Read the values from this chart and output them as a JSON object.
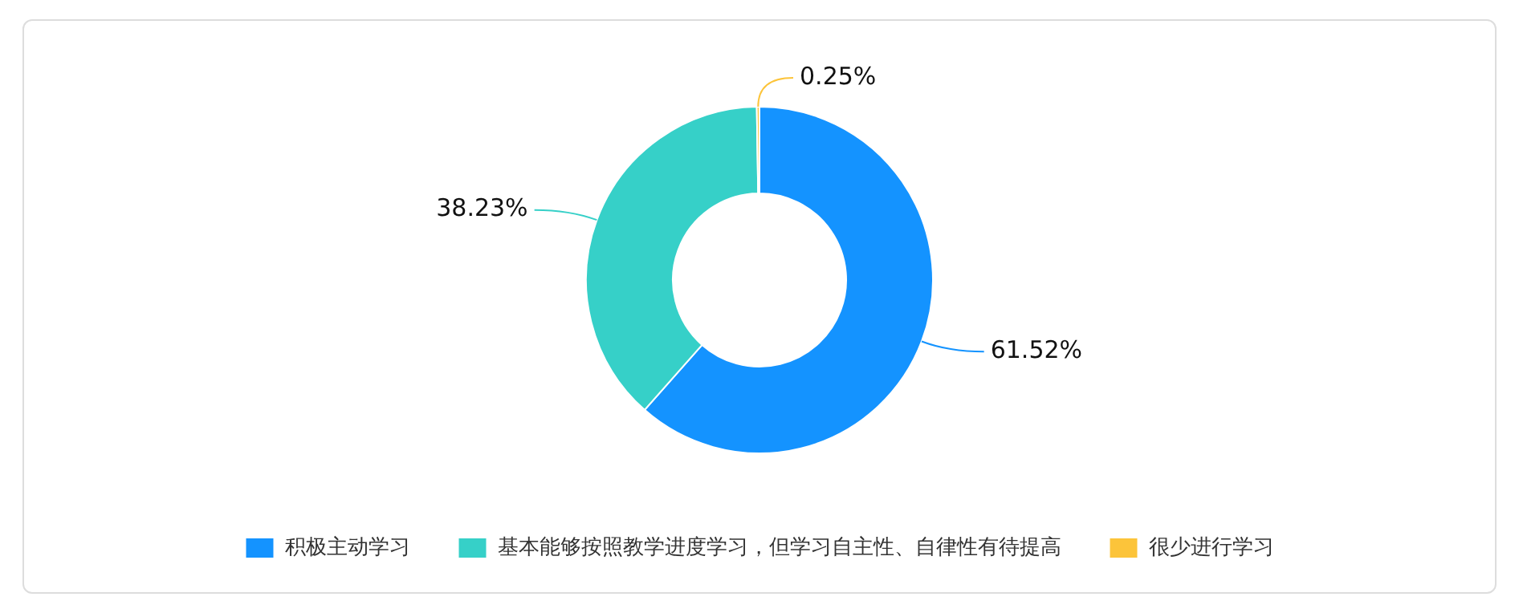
{
  "chart_data": {
    "type": "donut",
    "categories": [
      "积极主动学习",
      "基本能够按照教学进度学习，但学习自主性、自律性有待提高",
      "很少进行学习"
    ],
    "values": [
      61.52,
      38.23,
      0.25
    ],
    "colors": [
      "#1493ff",
      "#36d0c8",
      "#fcc43a"
    ],
    "value_labels": [
      "61.52%",
      "38.23%",
      "0.25%"
    ],
    "legend": "bottom"
  }
}
